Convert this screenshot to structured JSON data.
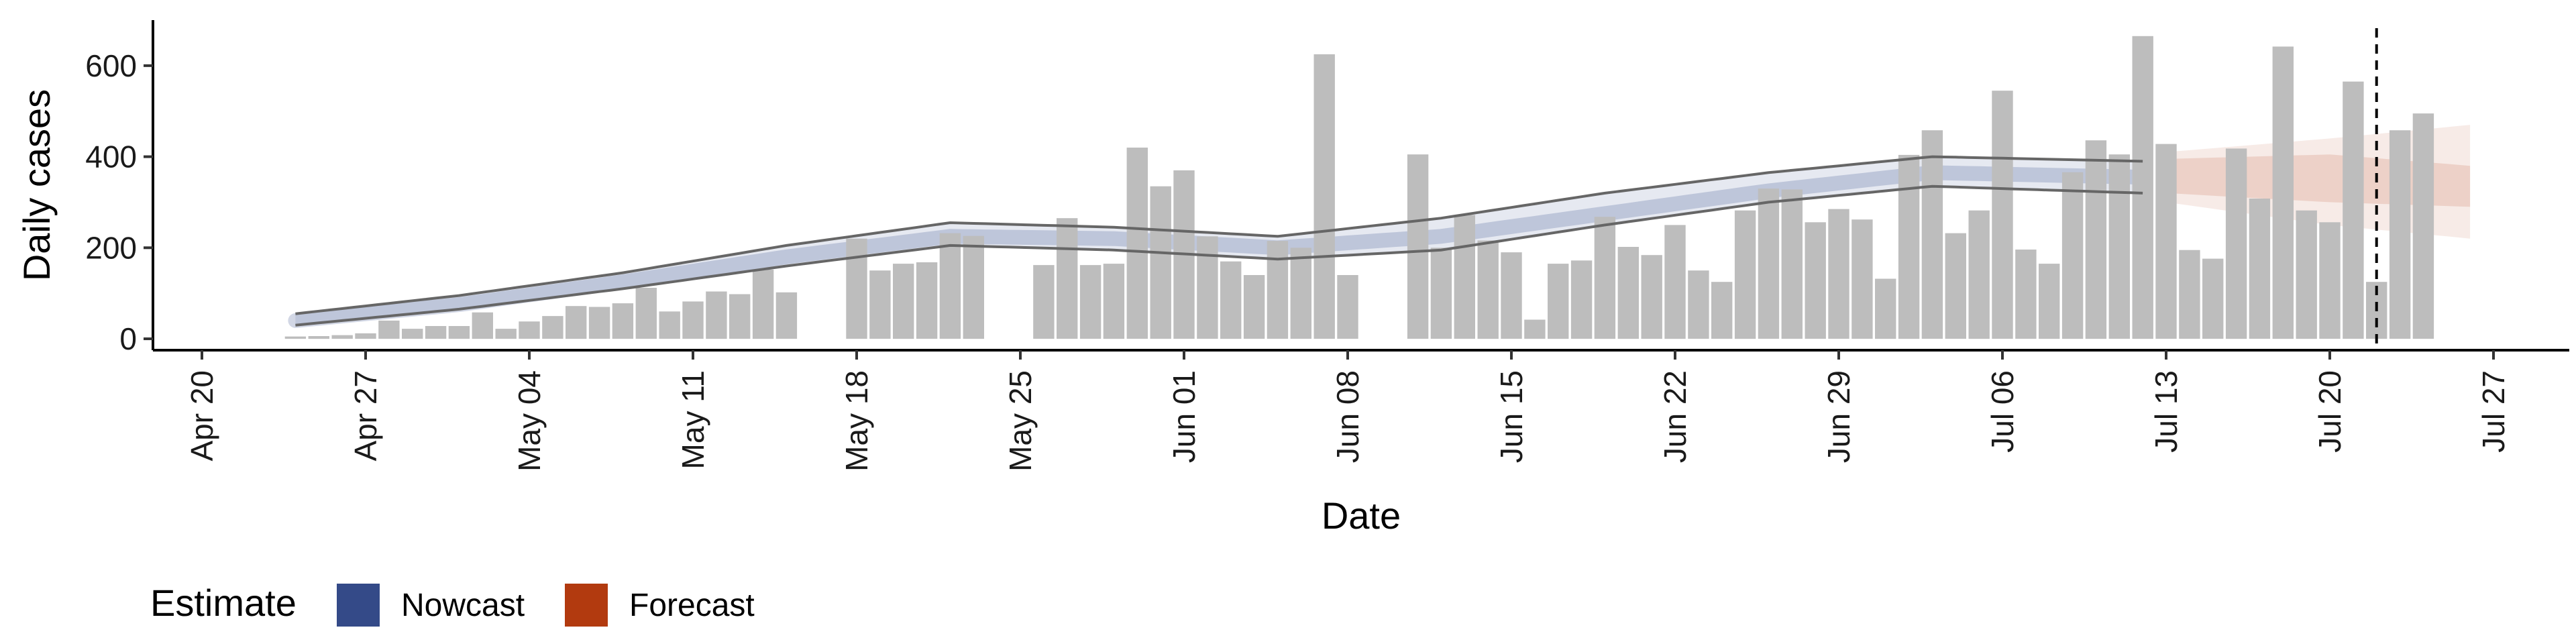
{
  "chart_data": {
    "type": "bar",
    "xlabel": "Date",
    "ylabel": "Daily cases",
    "x_axis": {
      "ticks": [
        "Apr 20",
        "Apr 27",
        "May 04",
        "May 11",
        "May 18",
        "May 25",
        "Jun 01",
        "Jun 08",
        "Jun 15",
        "Jun 22",
        "Jun 29",
        "Jul 06",
        "Jul 13",
        "Jul 20",
        "Jul 27"
      ],
      "range": [
        "2020-04-20",
        "2020-07-27"
      ],
      "scale": "date"
    },
    "y_axis": {
      "ticks": [
        0,
        200,
        400,
        600
      ],
      "range": [
        -25,
        700
      ]
    },
    "grid": false,
    "forecast_start": "2020-07-22",
    "legend": {
      "title": "Estimate",
      "placement": "bottom-left",
      "items": [
        {
          "label": "Nowcast",
          "color": "#344a88"
        },
        {
          "label": "Forecast",
          "color": "#b23a0f"
        }
      ]
    },
    "colors": {
      "bars": "#bdbdbd",
      "nowcast": "#344a88",
      "forecast": "#b23a0f",
      "outline": "#666666",
      "vline": "#000000"
    },
    "bars": {
      "start_date": "2020-04-24",
      "values": [
        5,
        6,
        8,
        12,
        40,
        22,
        28,
        28,
        58,
        22,
        38,
        50,
        72,
        70,
        78,
        112,
        60,
        82,
        104,
        98,
        152,
        102,
        null,
        null,
        220,
        150,
        165,
        168,
        232,
        226,
        null,
        null,
        162,
        265,
        162,
        165,
        420,
        335,
        370,
        225,
        170,
        140,
        215,
        200,
        625,
        140,
        null,
        null,
        405,
        200,
        272,
        216,
        190,
        42,
        165,
        172,
        268,
        202,
        184,
        250,
        150,
        125,
        282,
        330,
        328,
        256,
        285,
        262,
        132,
        404,
        458,
        232,
        282,
        545,
        196,
        165,
        366,
        436,
        405,
        665,
        428,
        195,
        176,
        418,
        308,
        642,
        282,
        256,
        565,
        125,
        458,
        495
      ]
    },
    "nowcast_band": {
      "dates": [
        "2020-04-24",
        "2020-05-01",
        "2020-05-08",
        "2020-05-15",
        "2020-05-22",
        "2020-05-29",
        "2020-06-05",
        "2020-06-12",
        "2020-06-19",
        "2020-06-26",
        "2020-07-03",
        "2020-07-12"
      ],
      "median": [
        40,
        75,
        125,
        180,
        225,
        220,
        200,
        225,
        275,
        325,
        365,
        355
      ],
      "lower": [
        30,
        65,
        110,
        160,
        205,
        195,
        175,
        195,
        250,
        300,
        335,
        320
      ],
      "upper": [
        55,
        95,
        145,
        205,
        255,
        245,
        225,
        265,
        320,
        365,
        400,
        390
      ]
    },
    "forecast_band": {
      "dates": [
        "2020-07-13",
        "2020-07-20",
        "2020-07-26"
      ],
      "median": [
        355,
        355,
        350
      ],
      "inner_lower": [
        320,
        300,
        290
      ],
      "inner_upper": [
        395,
        405,
        380
      ],
      "outer_lower": [
        300,
        250,
        220
      ],
      "outer_upper": [
        410,
        440,
        470
      ]
    }
  }
}
